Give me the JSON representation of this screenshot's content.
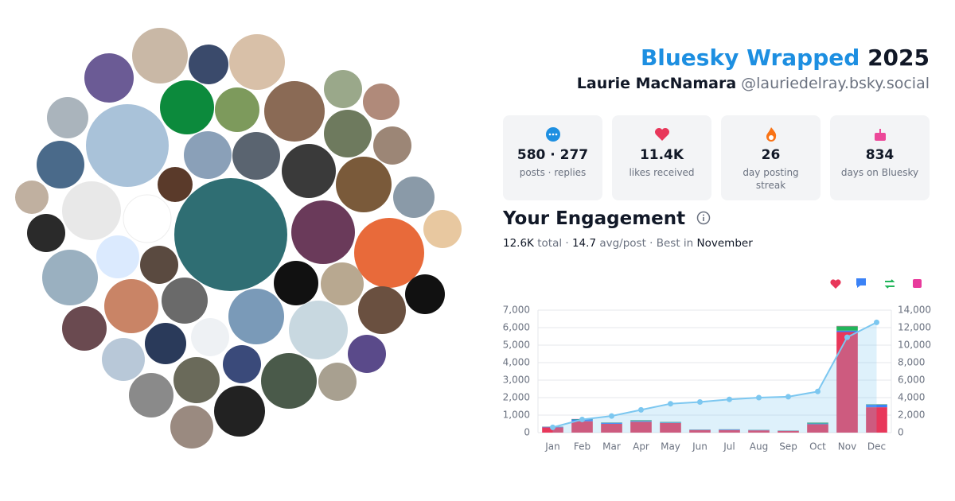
{
  "header": {
    "brand": "Bluesky Wrapped",
    "year": "2025",
    "name": "Laurie MacNamara",
    "handle": "@lauriedelray.bsky.social"
  },
  "stats": [
    {
      "value": "580 · 277",
      "label": "posts · replies"
    },
    {
      "value": "11.4K",
      "label": "likes received"
    },
    {
      "value": "26",
      "label": "day posting streak"
    },
    {
      "value": "834",
      "label": "days on Bluesky"
    }
  ],
  "engagement": {
    "title": "Your Engagement",
    "summary": [
      "12.6K",
      "total ·",
      "14.7",
      "avg/post · Best in",
      "November"
    ]
  },
  "chart_data": {
    "type": "bar",
    "categories": [
      "Jan",
      "Feb",
      "Mar",
      "Apr",
      "May",
      "Jun",
      "Jul",
      "Aug",
      "Sep",
      "Oct",
      "Nov",
      "Dec"
    ],
    "series": [
      {
        "color": "#e8375a",
        "values": [
          300,
          650,
          500,
          620,
          550,
          150,
          150,
          130,
          100,
          480,
          5750,
          1450
        ]
      },
      {
        "color": "#3b82f6",
        "values": [
          30,
          100,
          60,
          50,
          30,
          20,
          30,
          20,
          10,
          40,
          80,
          150
        ]
      },
      {
        "color": "#22b55a",
        "values": [
          10,
          20,
          20,
          40,
          30,
          10,
          10,
          10,
          10,
          50,
          250,
          20
        ]
      },
      {
        "color": "#e83a9c",
        "values": [
          5,
          10,
          5,
          5,
          5,
          2,
          2,
          2,
          2,
          5,
          20,
          5
        ]
      },
      {
        "color": "#7cc7f0",
        "axis": "y2",
        "values": [
          600,
          1500,
          1900,
          2600,
          3300,
          3500,
          3800,
          4000,
          4100,
          4700,
          10900,
          12600
        ]
      }
    ],
    "ylim": [
      0,
      7000
    ],
    "yticks": [
      0,
      {
        "value": 1000,
        "label": "1,000"
      },
      {
        "value": 2000,
        "label": "2,000"
      },
      {
        "value": 3000,
        "label": "3,000"
      },
      {
        "value": 4000,
        "label": "4,000"
      },
      {
        "value": 5000,
        "label": "5,000"
      },
      {
        "value": 6000,
        "label": "6,000"
      },
      {
        "value": 7000,
        "label": "7,000"
      }
    ],
    "y2lim": [
      0,
      14000
    ],
    "y2ticks": [
      0,
      {
        "value": 2000,
        "label": "2,000"
      },
      {
        "value": 4000,
        "label": "4,000"
      },
      {
        "value": 6000,
        "label": "6,000"
      },
      {
        "value": 8000,
        "label": "8,000"
      },
      {
        "value": 10000,
        "label": "10,000"
      },
      {
        "value": 12000,
        "label": "12,000"
      },
      {
        "value": 14000,
        "label": "14,000"
      }
    ],
    "grid": true
  }
}
